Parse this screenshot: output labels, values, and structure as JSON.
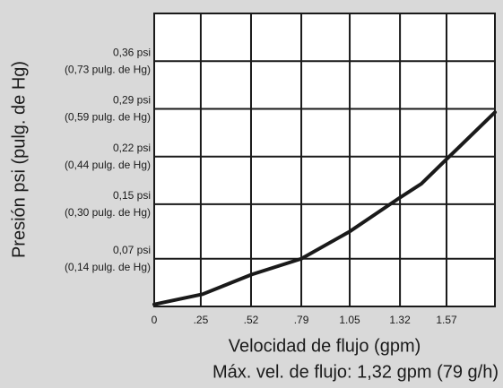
{
  "chart_data": {
    "type": "line",
    "x_label": "Velocidad de flujo (gpm)",
    "y_label": "Presión psi (pulg. de Hg)",
    "annotation": "Máx. vel. de flujo: 1,32 gpm (79 g/h)",
    "xlim": [
      0,
      1.83
    ],
    "ylim": [
      0,
      0.43
    ],
    "xticks": [
      0,
      {
        "value": 0.25,
        "label": ".25"
      },
      {
        "value": 0.52,
        "label": ".52"
      },
      {
        "value": 0.79,
        "label": ".79"
      },
      1.05,
      1.32,
      1.57
    ],
    "yticks": [
      {
        "value": 0.07,
        "label": "0,07 psi",
        "sublabel": "(0,14 pulg. de Hg)"
      },
      {
        "value": 0.15,
        "label": "0,15 psi",
        "sublabel": "(0,30 pulg. de Hg)"
      },
      {
        "value": 0.22,
        "label": "0,22 psi",
        "sublabel": "(0,44 pulg. de Hg)"
      },
      {
        "value": 0.29,
        "label": "0,29 psi",
        "sublabel": "(0,59 pulg. de Hg)"
      },
      {
        "value": 0.36,
        "label": "0,36 psi",
        "sublabel": "(0,73 pulg. de Hg)"
      }
    ],
    "grid": true,
    "x": [
      0,
      0.26,
      0.525,
      0.79,
      1.05,
      1.31,
      1.435,
      1.57,
      1.83
    ],
    "series": [
      {
        "color": "#1a1a1a",
        "values": [
          0.003,
          0.018,
          0.047,
          0.07,
          0.11,
          0.158,
          0.18,
          0.216,
          0.285
        ]
      }
    ]
  }
}
